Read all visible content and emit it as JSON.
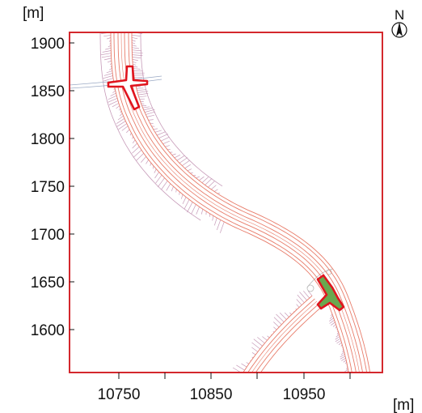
{
  "chart_data": {
    "type": "plan-view",
    "x_unit": "[m]",
    "y_unit": "[m]",
    "x_ticks": [
      "10750",
      "10850",
      "10950"
    ],
    "y_ticks": [
      "1900",
      "1850",
      "1800",
      "1750",
      "1700",
      "1650",
      "1600"
    ],
    "north_label": "N",
    "frame_color": "#d4282d",
    "road_color": "#e87c6a",
    "hatch_color": "#c69ab8",
    "footprint_outline_color": "#e0141e",
    "footprint_fill_color": "#6aa84f"
  }
}
